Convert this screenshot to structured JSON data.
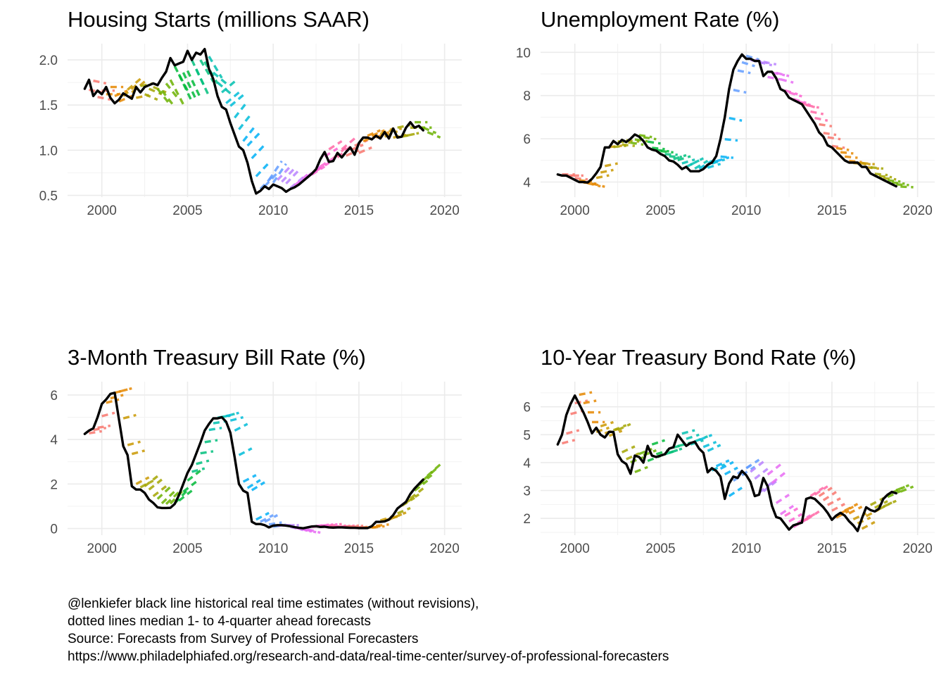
{
  "caption": [
    "@lenkiefer black line historical real time estimates (without revisions),",
    "dotted lines median 1- to 4-quarter ahead forecasts",
    "Source: Forecasts from Survey of Professional Forecasters",
    "https://www.philadelphiafed.org/research-and-data/real-time-center/survey-of-professional-forecasters"
  ],
  "forecast_palette": [
    "#F8766D",
    "#E58700",
    "#C99800",
    "#A3A500",
    "#6BB100",
    "#00BA38",
    "#00BF7D",
    "#00C0AF",
    "#00BCD8",
    "#00B0F6",
    "#619CFF",
    "#B983FF",
    "#E76BF3",
    "#FD61D1",
    "#FF67A4"
  ],
  "actual_color": "#000000",
  "chart_data": [
    {
      "type": "line",
      "title": "Housing Starts (millions SAAR)",
      "xlabel": "",
      "ylabel": "",
      "xlim": [
        1998,
        2021
      ],
      "ylim": [
        0.48,
        2.18
      ],
      "x_ticks": [
        "2000",
        "2005",
        "2010",
        "2015",
        "2020"
      ],
      "y_ticks": [
        "0.5",
        "1.0",
        "1.5",
        "2.0"
      ],
      "grid": true,
      "actual": {
        "x": [
          1999.0,
          1999.25,
          1999.5,
          1999.75,
          2000.0,
          2000.25,
          2000.5,
          2000.75,
          2001.0,
          2001.25,
          2001.5,
          2001.75,
          2002.0,
          2002.25,
          2002.5,
          2002.75,
          2003.0,
          2003.25,
          2003.5,
          2003.75,
          2004.0,
          2004.25,
          2004.5,
          2004.75,
          2005.0,
          2005.25,
          2005.5,
          2005.75,
          2006.0,
          2006.25,
          2006.5,
          2006.75,
          2007.0,
          2007.25,
          2007.5,
          2007.75,
          2008.0,
          2008.25,
          2008.5,
          2008.75,
          2009.0,
          2009.25,
          2009.5,
          2009.75,
          2010.0,
          2010.25,
          2010.5,
          2010.75,
          2011.0,
          2011.25,
          2011.5,
          2011.75,
          2012.0,
          2012.25,
          2012.5,
          2012.75,
          2013.0,
          2013.25,
          2013.5,
          2013.75,
          2014.0,
          2014.25,
          2014.5,
          2014.75,
          2015.0,
          2015.25,
          2015.5,
          2015.75,
          2016.0,
          2016.25,
          2016.5,
          2016.75,
          2017.0,
          2017.25,
          2017.5,
          2017.75,
          2018.0,
          2018.25,
          2018.5,
          2018.75
        ],
        "y": [
          1.68,
          1.78,
          1.6,
          1.66,
          1.62,
          1.7,
          1.58,
          1.52,
          1.56,
          1.63,
          1.6,
          1.57,
          1.7,
          1.64,
          1.7,
          1.72,
          1.74,
          1.72,
          1.8,
          1.87,
          2.02,
          1.94,
          1.96,
          1.98,
          2.1,
          2.0,
          2.08,
          2.06,
          2.12,
          1.9,
          1.79,
          1.6,
          1.48,
          1.45,
          1.3,
          1.17,
          1.04,
          1.0,
          0.86,
          0.66,
          0.52,
          0.55,
          0.6,
          0.57,
          0.62,
          0.6,
          0.58,
          0.54,
          0.57,
          0.59,
          0.62,
          0.66,
          0.7,
          0.74,
          0.79,
          0.9,
          0.98,
          0.87,
          0.88,
          0.97,
          0.92,
          0.98,
          1.03,
          0.95,
          1.08,
          1.14,
          1.14,
          1.12,
          1.16,
          1.13,
          1.2,
          1.13,
          1.24,
          1.14,
          1.15,
          1.25,
          1.31,
          1.25,
          1.27,
          1.22
        ]
      },
      "forecast_length": 4,
      "forecast_spacing": 0.6,
      "forecast_slope": [
        -0.01,
        0.0,
        0.02,
        0.04,
        0.01,
        -0.02,
        -0.06,
        -0.09,
        -0.1,
        -0.1,
        -0.08,
        -0.04,
        0.04,
        0.06,
        0.05,
        0.05,
        0.07,
        0.05,
        0.04,
        0.04,
        0.03,
        0.03,
        0.04,
        0.02,
        0.02,
        0.02,
        0.02,
        0.01,
        0.01,
        0.0,
        -0.02
      ]
    },
    {
      "type": "line",
      "title": "Unemployment Rate (%)",
      "xlabel": "",
      "ylabel": "",
      "xlim": [
        1998,
        2021
      ],
      "ylim": [
        3.3,
        10.4
      ],
      "x_ticks": [
        "2000",
        "2005",
        "2010",
        "2015",
        "2020"
      ],
      "y_ticks": [
        "4",
        "6",
        "8",
        "10"
      ],
      "grid": true,
      "actual": {
        "x": [
          1999.0,
          1999.25,
          1999.5,
          1999.75,
          2000.0,
          2000.25,
          2000.5,
          2000.75,
          2001.0,
          2001.25,
          2001.5,
          2001.75,
          2002.0,
          2002.25,
          2002.5,
          2002.75,
          2003.0,
          2003.25,
          2003.5,
          2003.75,
          2004.0,
          2004.25,
          2004.5,
          2004.75,
          2005.0,
          2005.25,
          2005.5,
          2005.75,
          2006.0,
          2006.25,
          2006.5,
          2006.75,
          2007.0,
          2007.25,
          2007.5,
          2007.75,
          2008.0,
          2008.25,
          2008.5,
          2008.75,
          2009.0,
          2009.25,
          2009.5,
          2009.75,
          2010.0,
          2010.25,
          2010.5,
          2010.75,
          2011.0,
          2011.25,
          2011.5,
          2011.75,
          2012.0,
          2012.25,
          2012.5,
          2012.75,
          2013.0,
          2013.25,
          2013.5,
          2013.75,
          2014.0,
          2014.25,
          2014.5,
          2014.75,
          2015.0,
          2015.25,
          2015.5,
          2015.75,
          2016.0,
          2016.25,
          2016.5,
          2016.75,
          2017.0,
          2017.25,
          2017.5,
          2017.75,
          2018.0,
          2018.25,
          2018.5,
          2018.75
        ],
        "y": [
          4.35,
          4.3,
          4.3,
          4.2,
          4.1,
          4.0,
          4.0,
          3.98,
          4.15,
          4.4,
          4.7,
          5.6,
          5.6,
          5.9,
          5.75,
          5.95,
          5.85,
          6.0,
          6.2,
          6.1,
          5.9,
          5.6,
          5.5,
          5.45,
          5.3,
          5.2,
          5.0,
          4.95,
          4.8,
          4.6,
          4.7,
          4.5,
          4.5,
          4.5,
          4.6,
          4.8,
          4.9,
          5.2,
          6.0,
          7.0,
          8.3,
          9.2,
          9.6,
          9.9,
          9.7,
          9.7,
          9.6,
          9.6,
          8.9,
          9.1,
          9.1,
          8.8,
          8.3,
          8.2,
          7.9,
          7.8,
          7.7,
          7.6,
          7.3,
          7.0,
          6.7,
          6.3,
          6.1,
          5.7,
          5.6,
          5.4,
          5.2,
          5.0,
          4.9,
          4.9,
          4.9,
          4.7,
          4.7,
          4.4,
          4.3,
          4.2,
          4.1,
          4.0,
          3.9,
          3.8
        ]
      },
      "forecast_length": 4,
      "forecast_spacing": 0.6,
      "forecast_slope": [
        0.0,
        -0.02,
        -0.05,
        0.04,
        0.02,
        -0.02,
        -0.03,
        -0.03,
        -0.02,
        -0.01,
        0.06,
        0.1,
        0.12,
        0.06,
        -0.02,
        -0.04,
        -0.06,
        -0.05,
        -0.04,
        -0.05,
        -0.06,
        -0.06,
        -0.04,
        -0.03,
        -0.03,
        -0.02,
        -0.02,
        -0.02,
        -0.02,
        -0.02,
        -0.01
      ]
    },
    {
      "type": "line",
      "title": "3-Month Treasury Bill Rate (%)",
      "xlabel": "",
      "ylabel": "",
      "xlim": [
        1998,
        2021
      ],
      "ylim": [
        -0.3,
        6.6
      ],
      "x_ticks": [
        "2000",
        "2005",
        "2010",
        "2015",
        "2020"
      ],
      "y_ticks": [
        "0",
        "2",
        "4",
        "6"
      ],
      "grid": true,
      "actual": {
        "x": [
          1999.0,
          1999.25,
          1999.5,
          1999.75,
          2000.0,
          2000.25,
          2000.5,
          2000.75,
          2001.0,
          2001.25,
          2001.5,
          2001.75,
          2002.0,
          2002.25,
          2002.5,
          2002.75,
          2003.0,
          2003.25,
          2003.5,
          2003.75,
          2004.0,
          2004.25,
          2004.5,
          2004.75,
          2005.0,
          2005.25,
          2005.5,
          2005.75,
          2006.0,
          2006.25,
          2006.5,
          2006.75,
          2007.0,
          2007.25,
          2007.5,
          2007.75,
          2008.0,
          2008.25,
          2008.5,
          2008.75,
          2009.0,
          2009.25,
          2009.5,
          2009.75,
          2010.0,
          2010.25,
          2010.5,
          2010.75,
          2011.0,
          2011.25,
          2011.5,
          2011.75,
          2012.0,
          2012.25,
          2012.5,
          2012.75,
          2013.0,
          2013.25,
          2013.5,
          2013.75,
          2014.0,
          2014.25,
          2014.5,
          2014.75,
          2015.0,
          2015.25,
          2015.5,
          2015.75,
          2016.0,
          2016.25,
          2016.5,
          2016.75,
          2017.0,
          2017.25,
          2017.5,
          2017.75,
          2018.0,
          2018.25,
          2018.5,
          2018.75
        ],
        "y": [
          4.25,
          4.4,
          4.5,
          5.0,
          5.6,
          5.8,
          6.05,
          6.1,
          4.9,
          3.7,
          3.3,
          1.9,
          1.75,
          1.75,
          1.6,
          1.3,
          1.15,
          0.95,
          0.92,
          0.92,
          0.93,
          1.1,
          1.5,
          2.0,
          2.5,
          2.85,
          3.35,
          3.85,
          4.4,
          4.7,
          4.95,
          4.95,
          5.0,
          4.8,
          4.3,
          3.2,
          2.0,
          1.7,
          1.6,
          0.3,
          0.2,
          0.2,
          0.15,
          0.05,
          0.13,
          0.15,
          0.15,
          0.13,
          0.1,
          0.06,
          0.03,
          0.01,
          0.05,
          0.09,
          0.1,
          0.07,
          0.08,
          0.05,
          0.04,
          0.05,
          0.05,
          0.04,
          0.03,
          0.03,
          0.02,
          0.02,
          0.02,
          0.1,
          0.3,
          0.3,
          0.32,
          0.4,
          0.6,
          0.9,
          1.05,
          1.2,
          1.55,
          1.8,
          2.0,
          2.2
        ]
      },
      "forecast_length": 4,
      "forecast_spacing": 0.6,
      "forecast_slope": [
        0.03,
        0.05,
        0.05,
        0.05,
        0.1,
        0.15,
        0.18,
        0.2,
        0.15,
        0.05,
        0.03,
        0.03,
        0.05,
        0.1,
        0.12,
        0.1,
        0.03,
        0.0,
        -0.05,
        -0.05,
        0.02,
        0.03,
        0.02,
        0.02,
        0.01,
        0.02,
        0.06,
        0.08,
        0.12,
        0.15,
        0.17
      ]
    },
    {
      "type": "line",
      "title": "10-Year Treasury Bond Rate (%)",
      "xlabel": "",
      "ylabel": "",
      "xlim": [
        1998,
        2021
      ],
      "ylim": [
        1.4,
        6.9
      ],
      "x_ticks": [
        "2000",
        "2005",
        "2010",
        "2015",
        "2020"
      ],
      "y_ticks": [
        "2",
        "3",
        "4",
        "5",
        "6"
      ],
      "grid": true,
      "actual": {
        "x": [
          1999.0,
          1999.25,
          1999.5,
          1999.75,
          2000.0,
          2000.25,
          2000.5,
          2000.75,
          2001.0,
          2001.25,
          2001.5,
          2001.75,
          2002.0,
          2002.25,
          2002.5,
          2002.75,
          2003.0,
          2003.25,
          2003.5,
          2003.75,
          2004.0,
          2004.25,
          2004.5,
          2004.75,
          2005.0,
          2005.25,
          2005.5,
          2005.75,
          2006.0,
          2006.25,
          2006.5,
          2006.75,
          2007.0,
          2007.25,
          2007.5,
          2007.75,
          2008.0,
          2008.25,
          2008.5,
          2008.75,
          2009.0,
          2009.25,
          2009.5,
          2009.75,
          2010.0,
          2010.25,
          2010.5,
          2010.75,
          2011.0,
          2011.25,
          2011.5,
          2011.75,
          2012.0,
          2012.25,
          2012.5,
          2012.75,
          2013.0,
          2013.25,
          2013.5,
          2013.75,
          2014.0,
          2014.25,
          2014.5,
          2014.75,
          2015.0,
          2015.25,
          2015.5,
          2015.75,
          2016.0,
          2016.25,
          2016.5,
          2016.75,
          2017.0,
          2017.25,
          2017.5,
          2017.75,
          2018.0,
          2018.25,
          2018.5,
          2018.75
        ],
        "y": [
          4.65,
          5.0,
          5.7,
          6.1,
          6.4,
          6.1,
          5.8,
          5.45,
          5.05,
          5.25,
          5.0,
          4.9,
          5.1,
          5.1,
          4.3,
          4.05,
          3.95,
          3.6,
          4.25,
          4.2,
          4.0,
          4.6,
          4.25,
          4.2,
          4.25,
          4.3,
          4.5,
          4.55,
          5.0,
          4.8,
          4.6,
          4.7,
          4.75,
          4.5,
          4.35,
          3.65,
          3.8,
          3.7,
          3.5,
          2.7,
          3.25,
          3.5,
          3.45,
          3.7,
          3.55,
          3.3,
          2.8,
          2.85,
          3.45,
          3.15,
          2.45,
          2.05,
          2.0,
          1.8,
          1.6,
          1.75,
          1.8,
          1.85,
          2.7,
          2.75,
          2.7,
          2.55,
          2.4,
          2.2,
          1.95,
          2.1,
          2.2,
          2.1,
          1.9,
          1.75,
          1.55,
          2.0,
          2.4,
          2.3,
          2.25,
          2.35,
          2.7,
          2.85,
          2.95,
          2.9
        ]
      },
      "forecast_length": 4,
      "forecast_spacing": 0.6,
      "forecast_slope": [
        0.04,
        0.03,
        0.0,
        0.05,
        0.06,
        0.07,
        0.06,
        0.06,
        0.05,
        0.05,
        0.04,
        0.05,
        0.06,
        0.07,
        0.08,
        0.1,
        0.1,
        0.12,
        0.12,
        0.1,
        0.09,
        0.09,
        0.1,
        0.1,
        0.08,
        0.08,
        0.07,
        0.08,
        0.08,
        0.07,
        0.06
      ]
    }
  ]
}
